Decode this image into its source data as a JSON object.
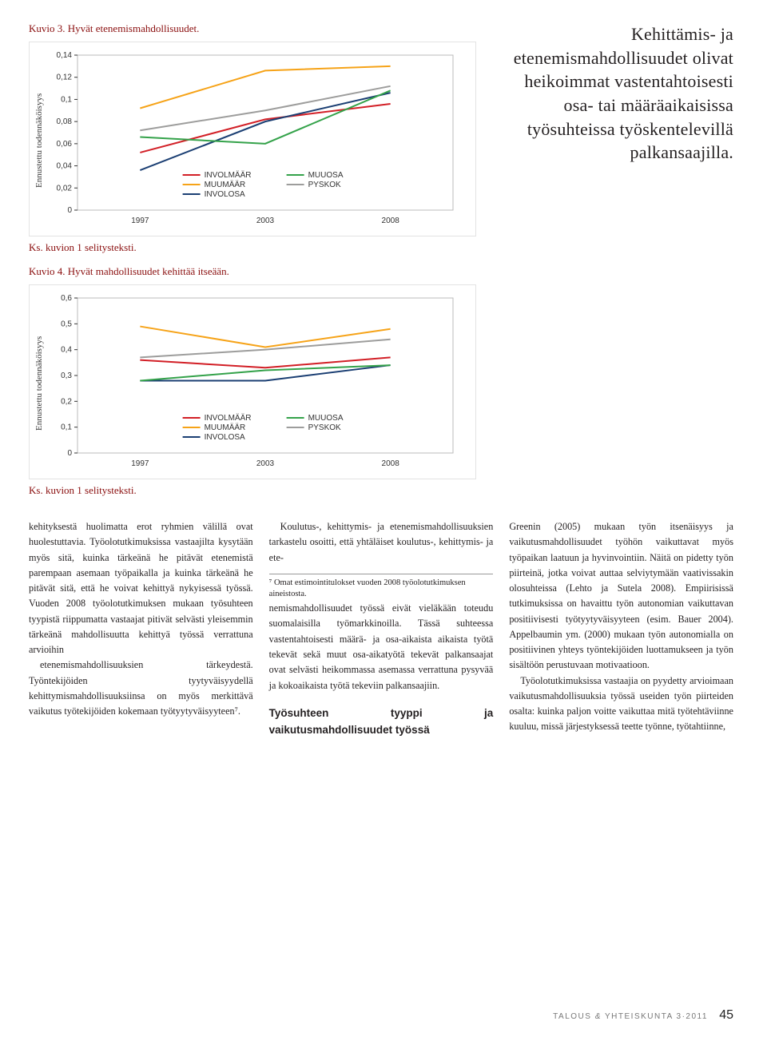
{
  "chart1": {
    "title": "Kuvio 3. Hyvät etenemismahdollisuudet.",
    "y_axis_label": "Ennustettu todennäköisyys",
    "selitys": "Ks. kuvion 1 selitysteksti.",
    "x_categories": [
      "1997",
      "2003",
      "2008"
    ],
    "y_ticks": [
      "0",
      "0,02",
      "0,04",
      "0,06",
      "0,08",
      "0,1",
      "0,12",
      "0,14"
    ],
    "ylim": [
      0,
      0.14
    ],
    "series": [
      {
        "name": "INVOLMÄÄR",
        "color": "#d21f26",
        "values": [
          0.052,
          0.082,
          0.096
        ],
        "width": 2
      },
      {
        "name": "MUUMÄÄR",
        "color": "#f6a318",
        "values": [
          0.092,
          0.126,
          0.13
        ],
        "width": 2
      },
      {
        "name": "INVOLOSA",
        "color": "#1b3f73",
        "values": [
          0.036,
          0.08,
          0.106
        ],
        "width": 2
      },
      {
        "name": "MUUOSA",
        "color": "#34a24a",
        "values": [
          0.066,
          0.06,
          0.108
        ],
        "width": 2
      },
      {
        "name": "PYSKOK",
        "color": "#9d9d9c",
        "values": [
          0.072,
          0.09,
          0.112
        ],
        "width": 2
      }
    ],
    "legend_cols": [
      [
        "INVOLMÄÄR",
        "MUUMÄÄR",
        "INVOLOSA"
      ],
      [
        "MUUOSA",
        "PYSKOK"
      ]
    ]
  },
  "chart2": {
    "title": "Kuvio 4. Hyvät mahdollisuudet kehittää itseään.",
    "y_axis_label": "Ennustettu todennäköisyys",
    "selitys": "Ks. kuvion 1 selitysteksti.",
    "x_categories": [
      "1997",
      "2003",
      "2008"
    ],
    "y_ticks": [
      "0",
      "0,1",
      "0,2",
      "0,3",
      "0,4",
      "0,5",
      "0,6"
    ],
    "ylim": [
      0,
      0.6
    ],
    "series": [
      {
        "name": "INVOLMÄÄR",
        "color": "#d21f26",
        "values": [
          0.36,
          0.33,
          0.37
        ],
        "width": 2
      },
      {
        "name": "MUUMÄÄR",
        "color": "#f6a318",
        "values": [
          0.49,
          0.41,
          0.48
        ],
        "width": 2
      },
      {
        "name": "INVOLOSA",
        "color": "#1b3f73",
        "values": [
          0.28,
          0.28,
          0.34
        ],
        "width": 2
      },
      {
        "name": "MUUOSA",
        "color": "#34a24a",
        "values": [
          0.28,
          0.32,
          0.34
        ],
        "width": 2
      },
      {
        "name": "PYSKOK",
        "color": "#9d9d9c",
        "values": [
          0.37,
          0.4,
          0.44
        ],
        "width": 2
      }
    ],
    "legend_cols": [
      [
        "INVOLMÄÄR",
        "MUUMÄÄR",
        "INVOLOSA"
      ],
      [
        "MUUOSA",
        "PYSKOK"
      ]
    ]
  },
  "pull_quote": "Kehittämis- ja etenemismahdollisuudet olivat heikoimmat vastentahtoisesti osa- tai määräaikaisissa työsuhteissa työskentelevillä palkansaajilla.",
  "body": {
    "p1": "kehityksestä huolimatta erot ryhmien välillä ovat huolestuttavia. Työolotutkimuksissa vastaajilta kysytään myös sitä, kuinka tärkeänä he pitävät etenemistä parempaan asemaan työpaikalla ja kuinka tärkeänä he pitävät sitä, että he voivat kehittyä nykyisessä työssä. Vuoden 2008 työolotutkimuksen mukaan työsuhteen tyypistä riippumatta vastaajat pitivät selvästi yleisemmin tärkeänä mahdollisuutta kehittyä työssä verrattuna arvioihin",
    "p2": "etenemismahdollisuuksien tärkeydestä. Työntekijöiden tyytyväisyydellä kehittymismahdollisuuksiinsa on myös merkittävä vaikutus työtekijöiden kokemaan työtyytyväisyyteen⁷.",
    "p3": "Koulutus-, kehittymis- ja etenemismahdollisuuksien tarkastelu osoitti, että yhtäläiset koulutus-, kehittymis- ja ete-",
    "footnote": "⁷ Omat estimointitulokset vuoden 2008 työolotutkimuksen aineistosta.",
    "p4": "nemismahdollisuudet työssä eivät vieläkään toteudu suomalaisilla työmarkkinoilla. Tässä suhteessa vastentahtoisesti määrä- ja osa-aikaista aikaista työtä tekevät sekä muut osa-aikatyötä tekevät palkansaajat ovat selvästi heikommassa asemassa verrattuna pysyvää ja kokoaikaista työtä tekeviin palkansaajiin.",
    "heading": "Työsuhteen tyyppi ja vaikutusmahdollisuudet työssä",
    "p5": "Greenin (2005) mukaan työn itsenäisyys ja vaikutusmahdollisuudet työhön vaikuttavat myös työpaikan laatuun ja hyvinvointiin. Näitä on pidetty työn piirteinä, jotka voivat auttaa selviytymään vaativissakin olosuhteissa (Lehto ja Sutela 2008). Empiirisissä tutkimuksissa on havaittu työn autonomian vaikuttavan positiivisesti työtyytyväisyyteen (esim. Bauer 2004). Appelbaumin ym. (2000) mukaan työn autonomialla on positiivinen yhteys työntekijöiden luottamukseen ja työn sisältöön perustuvaan motivaatioon.",
    "p6": "Työolotutkimuksissa vastaajia on pyydetty arvioimaan vaikutusmahdollisuuksia työssä useiden työn piirteiden osalta: kuinka paljon voitte vaikuttaa mitä työtehtäviinne kuuluu, missä järjestyksessä teette työnne, työtahtiinne,"
  },
  "footer": {
    "mag": "TALOUS",
    "amp": "&",
    "mag2": "YHTEISKUNTA",
    "issue": "3·2011",
    "page": "45"
  }
}
